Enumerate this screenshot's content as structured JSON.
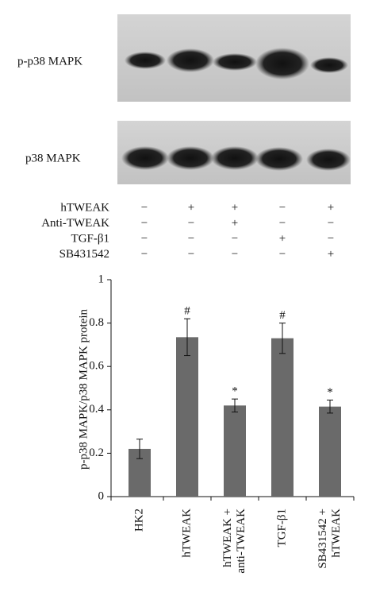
{
  "blot_labels": [
    "p-p38 MAPK",
    "p38 MAPK"
  ],
  "treatments": [
    {
      "name": "hTWEAK",
      "signs": [
        "−",
        "+",
        "+",
        "−",
        "+"
      ]
    },
    {
      "name": "Anti-TWEAK",
      "signs": [
        "−",
        "−",
        "+",
        "−",
        "−"
      ]
    },
    {
      "name": "TGF-β1",
      "signs": [
        "−",
        "−",
        "−",
        "+",
        "−"
      ]
    },
    {
      "name": "SB431542",
      "signs": [
        "−",
        "−",
        "−",
        "−",
        "+"
      ]
    }
  ],
  "chart_data": {
    "type": "bar",
    "ylabel": "p-p38 MAPK/p38 MAPK protein",
    "categories": [
      [
        "HK2"
      ],
      [
        "hTWEAK"
      ],
      [
        "hTWEAK +",
        "anti-TWEAK"
      ],
      [
        "TGF-β1"
      ],
      [
        "SB431542 +",
        "hTWEAK"
      ]
    ],
    "values": [
      0.22,
      0.735,
      0.42,
      0.73,
      0.415
    ],
    "errors": [
      0.045,
      0.085,
      0.03,
      0.07,
      0.03
    ],
    "annotations": [
      null,
      "#",
      "*",
      "#",
      "*"
    ],
    "color": "#6a6a6a",
    "ylim": [
      0,
      1
    ],
    "yticks": [
      0,
      0.2,
      0.4,
      0.6,
      0.8,
      1
    ]
  }
}
